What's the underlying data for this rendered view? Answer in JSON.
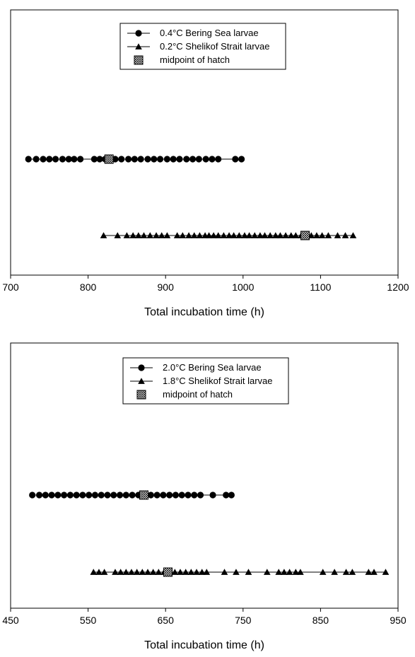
{
  "chart_data": [
    {
      "type": "scatter",
      "xlabel": "Total incubation time (h)",
      "ylabel": "",
      "xlim": [
        700,
        1200
      ],
      "xticks": [
        700,
        800,
        900,
        1000,
        1100,
        1200
      ],
      "legend_position": "top-center",
      "grid": false,
      "legend": [
        {
          "marker": "circle",
          "label": "0.4°C Bering Sea larvae"
        },
        {
          "marker": "triangle",
          "label": "0.2°C Shelikof Strait larvae"
        },
        {
          "marker": "hatched-square",
          "label": "midpoint of hatch"
        }
      ],
      "series": [
        {
          "name": "0.4°C Bering Sea larvae",
          "marker": "circle",
          "row": 2,
          "x": [
            723,
            733,
            742,
            750,
            758,
            767,
            775,
            782,
            790,
            808,
            815,
            822,
            827,
            835,
            843,
            852,
            860,
            868,
            877,
            885,
            893,
            902,
            910,
            918,
            927,
            935,
            943,
            952,
            960,
            968,
            990,
            998
          ]
        },
        {
          "name": "0.2°C Shelikof Strait larvae",
          "marker": "triangle",
          "row": 1,
          "x": [
            820,
            838,
            850,
            858,
            865,
            872,
            880,
            888,
            895,
            902,
            915,
            922,
            930,
            937,
            944,
            951,
            956,
            962,
            968,
            975,
            982,
            988,
            995,
            1002,
            1008,
            1015,
            1022,
            1028,
            1035,
            1042,
            1048,
            1055,
            1062,
            1068,
            1075,
            1088,
            1095,
            1102,
            1110,
            1122,
            1132,
            1142
          ]
        }
      ],
      "midpoints": [
        {
          "row": 2,
          "x": 827
        },
        {
          "row": 1,
          "x": 1080
        }
      ]
    },
    {
      "type": "scatter",
      "xlabel": "Total incubation time (h)",
      "ylabel": "",
      "xlim": [
        450,
        950
      ],
      "xticks": [
        450,
        550,
        650,
        750,
        850,
        950
      ],
      "legend_position": "top-center",
      "grid": false,
      "legend": [
        {
          "marker": "circle",
          "label": "2.0°C Bering Sea larvae"
        },
        {
          "marker": "triangle",
          "label": "1.8°C Shelikof Strait larvae"
        },
        {
          "marker": "hatched-square",
          "label": "midpoint of hatch"
        }
      ],
      "series": [
        {
          "name": "2.0°C Bering Sea larvae",
          "marker": "circle",
          "row": 2,
          "x": [
            478,
            487,
            495,
            503,
            511,
            519,
            527,
            535,
            543,
            551,
            559,
            567,
            575,
            583,
            591,
            599,
            607,
            615,
            623,
            631,
            639,
            647,
            655,
            663,
            671,
            679,
            687,
            695,
            711,
            728,
            735
          ]
        },
        {
          "name": "1.8°C Shelikof Strait larvae",
          "marker": "triangle",
          "row": 1,
          "x": [
            557,
            564,
            571,
            585,
            592,
            599,
            606,
            613,
            620,
            627,
            634,
            641,
            648,
            655,
            662,
            669,
            676,
            683,
            690,
            697,
            703,
            726,
            741,
            757,
            781,
            796,
            803,
            810,
            818,
            824,
            853,
            868,
            883,
            891,
            912,
            919,
            934
          ]
        }
      ],
      "midpoints": [
        {
          "row": 2,
          "x": 622
        },
        {
          "row": 1,
          "x": 653
        }
      ]
    }
  ]
}
